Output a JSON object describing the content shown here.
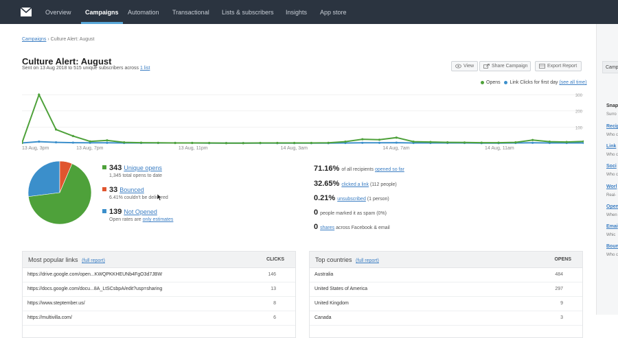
{
  "topnav": {
    "items": [
      {
        "label": "Overview",
        "active": false
      },
      {
        "label": "Campaigns",
        "active": true
      },
      {
        "label": "Automation",
        "active": false
      },
      {
        "label": "Transactional",
        "active": false
      },
      {
        "label": "Lists & subscribers",
        "active": false
      },
      {
        "label": "Insights",
        "active": false
      },
      {
        "label": "App store",
        "active": false
      }
    ]
  },
  "breadcrumb": {
    "root": "Campaigns",
    "separator": "›",
    "current": "Culture Alert: August"
  },
  "page": {
    "title": "Culture Alert: August",
    "subtitle_prefix": "Sent on 13 Aug 2018 to 515 unique subscribers across",
    "subtitle_link": "1 list"
  },
  "actions": {
    "view": "View",
    "share": "Share Campaign",
    "export": "Export Report"
  },
  "legend": {
    "opens": "Opens",
    "clicks": "Link Clicks for first day",
    "see_all": "(see all time)"
  },
  "colors": {
    "opens": "#4ea13a",
    "clicks": "#3b8fcb",
    "bounced": "#e0552f",
    "not_opened": "#3b8fcb",
    "nav_bg": "#2b3440"
  },
  "chart_data": {
    "type": "line",
    "x": [
      "13 Aug, 3pm",
      "",
      "",
      "",
      "13 Aug, 7pm",
      "",
      "",
      "",
      "",
      "",
      "13 Aug, 11pm",
      "",
      "",
      "",
      "",
      "",
      "14 Aug, 3am",
      "",
      "",
      "",
      "",
      "",
      "14 Aug, 7am",
      "",
      "",
      "",
      "",
      "",
      "14 Aug, 11am",
      "",
      "",
      "",
      "",
      ""
    ],
    "y_ticks": [
      "300",
      "200",
      "100"
    ],
    "ylim": [
      0,
      330
    ],
    "series": [
      {
        "name": "Opens",
        "color": "#4ea13a",
        "values": [
          2,
          300,
          85,
          45,
          12,
          18,
          6,
          4,
          3,
          2,
          2,
          2,
          1,
          1,
          2,
          2,
          2,
          2,
          3,
          10,
          25,
          22,
          35,
          10,
          8,
          6,
          5,
          4,
          4,
          6,
          20,
          10,
          8,
          12
        ]
      },
      {
        "name": "Link Clicks for first day",
        "color": "#3b8fcb",
        "values": [
          2,
          10,
          6,
          4,
          3,
          3,
          2,
          2,
          2,
          2,
          2,
          1,
          1,
          1,
          1,
          1,
          1,
          1,
          1,
          2,
          3,
          3,
          4,
          2,
          2,
          2,
          2,
          1,
          1,
          2,
          3,
          2,
          2,
          2
        ]
      }
    ]
  },
  "pie": {
    "opened": 343,
    "bounced": 33,
    "not_opened": 139
  },
  "stats_left": {
    "opened": {
      "value": "343",
      "link": "Unique opens",
      "sub": "1,345 total opens to date"
    },
    "bounced": {
      "value": "33",
      "link": "Bounced",
      "sub": "6.41% couldn't be delivered"
    },
    "not_opened": {
      "value": "139",
      "link": "Not Opened",
      "sub_prefix": "Open rates are",
      "sub_link": "only estimates"
    }
  },
  "stats_right": [
    {
      "value": "71.16%",
      "prefix": "of all recipients",
      "link": "opened so far",
      "suffix": ""
    },
    {
      "value": "32.65%",
      "prefix": "",
      "link": "clicked a link",
      "suffix": "(112 people)"
    },
    {
      "value": "0.21%",
      "prefix": "",
      "link": "unsubscribed",
      "suffix": "(1 person)"
    },
    {
      "value": "0",
      "prefix": "people marked it as spam (0%)",
      "link": "",
      "suffix": ""
    },
    {
      "value": "0",
      "prefix": "",
      "link": "shares",
      "suffix": "across Facebook & email"
    }
  ],
  "links_panel": {
    "title": "Most popular links",
    "full_report": "(full report)",
    "col": "CLICKS",
    "rows": [
      {
        "url": "https://drive.google.com/open...KWQPKKHEUNb4FgO3d7JBW",
        "clicks": "146"
      },
      {
        "url": "https://docs.google.com/docu...8A_LtSCsbpA/edit?usp=sharing",
        "clicks": "13"
      },
      {
        "url": "https://www.steptember.us/",
        "clicks": "8"
      },
      {
        "url": "https://multivilla.com/",
        "clicks": "6"
      }
    ]
  },
  "countries_panel": {
    "title": "Top countries",
    "full_report": "(full report)",
    "col": "OPENS",
    "rows": [
      {
        "country": "Australia",
        "opens": "484"
      },
      {
        "country": "United States of America",
        "opens": "297"
      },
      {
        "country": "United Kingdom",
        "opens": "9"
      },
      {
        "country": "Canada",
        "opens": "3"
      }
    ]
  },
  "side_panel": {
    "header": "Camp",
    "items": [
      "Snap",
      "Surro",
      "Recip",
      "Who c",
      "Link",
      "Who c",
      "Soci",
      "Who c",
      "Worl",
      "Real-",
      "Open",
      "When",
      "Emai",
      "Whic",
      "Boun",
      "Who c"
    ]
  }
}
